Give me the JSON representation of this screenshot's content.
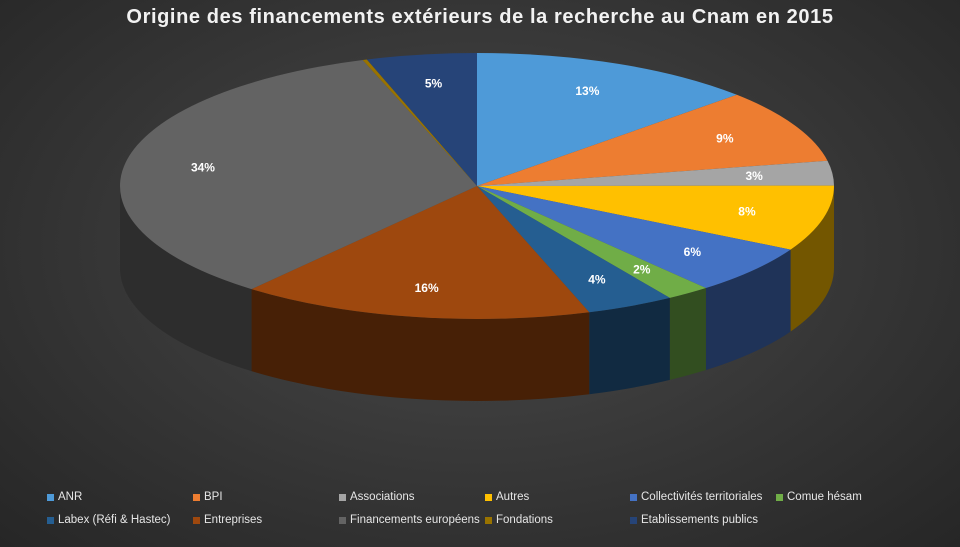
{
  "chart_data": {
    "type": "pie",
    "title": "Origine des financements extérieurs de la recherche au Cnam en 2015",
    "slices": [
      {
        "name": "ANR",
        "value": 13,
        "label": "13%",
        "color": "#4e9ad8"
      },
      {
        "name": "BPI",
        "value": 9,
        "label": "9%",
        "color": "#ed7d31"
      },
      {
        "name": "Associations",
        "value": 3,
        "label": "3%",
        "color": "#a5a5a5"
      },
      {
        "name": "Autres",
        "value": 8,
        "label": "8%",
        "color": "#ffc000"
      },
      {
        "name": "Collectivités territoriales",
        "value": 6,
        "label": "6%",
        "color": "#4472c4"
      },
      {
        "name": "Comue hésam",
        "value": 2,
        "label": "2%",
        "color": "#70ad47"
      },
      {
        "name": "Labex (Réfi & Hastec)",
        "value": 4,
        "label": "4%",
        "color": "#255e91"
      },
      {
        "name": "Entreprises",
        "value": 16,
        "label": "16%",
        "color": "#9e480e"
      },
      {
        "name": "Financements européens",
        "value": 34,
        "label": "34%",
        "color": "#636363"
      },
      {
        "name": "Fondations",
        "value": 0.2,
        "label": "",
        "color": "#997300"
      },
      {
        "name": "Etablissements publics",
        "value": 5,
        "label": "5%",
        "color": "#264478"
      }
    ],
    "legend_position": "bottom"
  }
}
